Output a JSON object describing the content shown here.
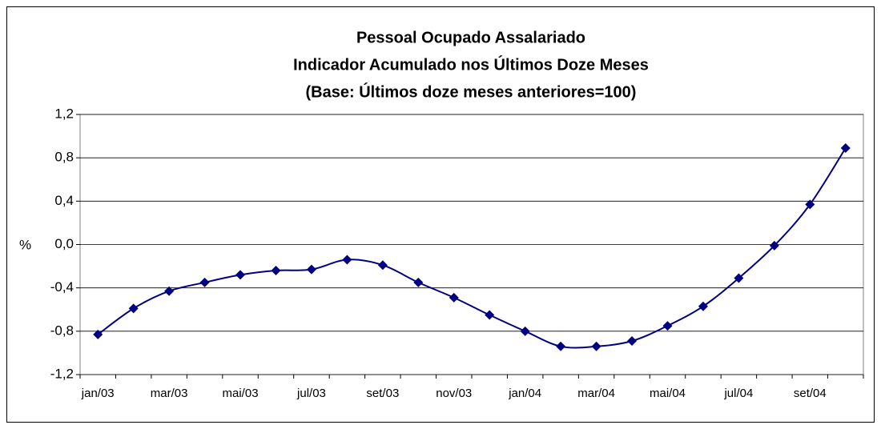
{
  "chart_data": {
    "type": "line",
    "title": [
      "Pessoal Ocupado Assalariado",
      "Indicador Acumulado nos Últimos Doze Meses",
      "(Base: Últimos doze meses anteriores=100)"
    ],
    "y_label": "%",
    "categories": [
      "jan/03",
      null,
      "mar/03",
      null,
      "mai/03",
      null,
      "jul/03",
      null,
      "set/03",
      null,
      "nov/03",
      null,
      "jan/04",
      null,
      "mar/04",
      null,
      "mai/04",
      null,
      "jul/04",
      null,
      "set/04",
      null
    ],
    "series": [
      {
        "color": "#000080",
        "values": [
          -0.83,
          -0.59,
          -0.43,
          -0.35,
          -0.28,
          -0.24,
          -0.23,
          -0.14,
          -0.19,
          -0.35,
          -0.49,
          -0.65,
          -0.8,
          -0.94,
          -0.94,
          -0.89,
          -0.75,
          -0.57,
          -0.31,
          -0.01,
          0.37,
          0.89
        ]
      }
    ],
    "ylim": [
      -1.2,
      1.2
    ],
    "yticks": [
      {
        "value": -1.2,
        "label": "-1,2"
      },
      {
        "value": -0.8,
        "label": "-0,8"
      },
      {
        "value": -0.4,
        "label": "-0,4"
      },
      {
        "value": 0,
        "label": "0,0"
      },
      {
        "value": 0.4,
        "label": "0,4"
      },
      {
        "value": 0.8,
        "label": "0,8"
      },
      {
        "value": 1.2,
        "label": "1,2"
      }
    ],
    "grid": true
  }
}
